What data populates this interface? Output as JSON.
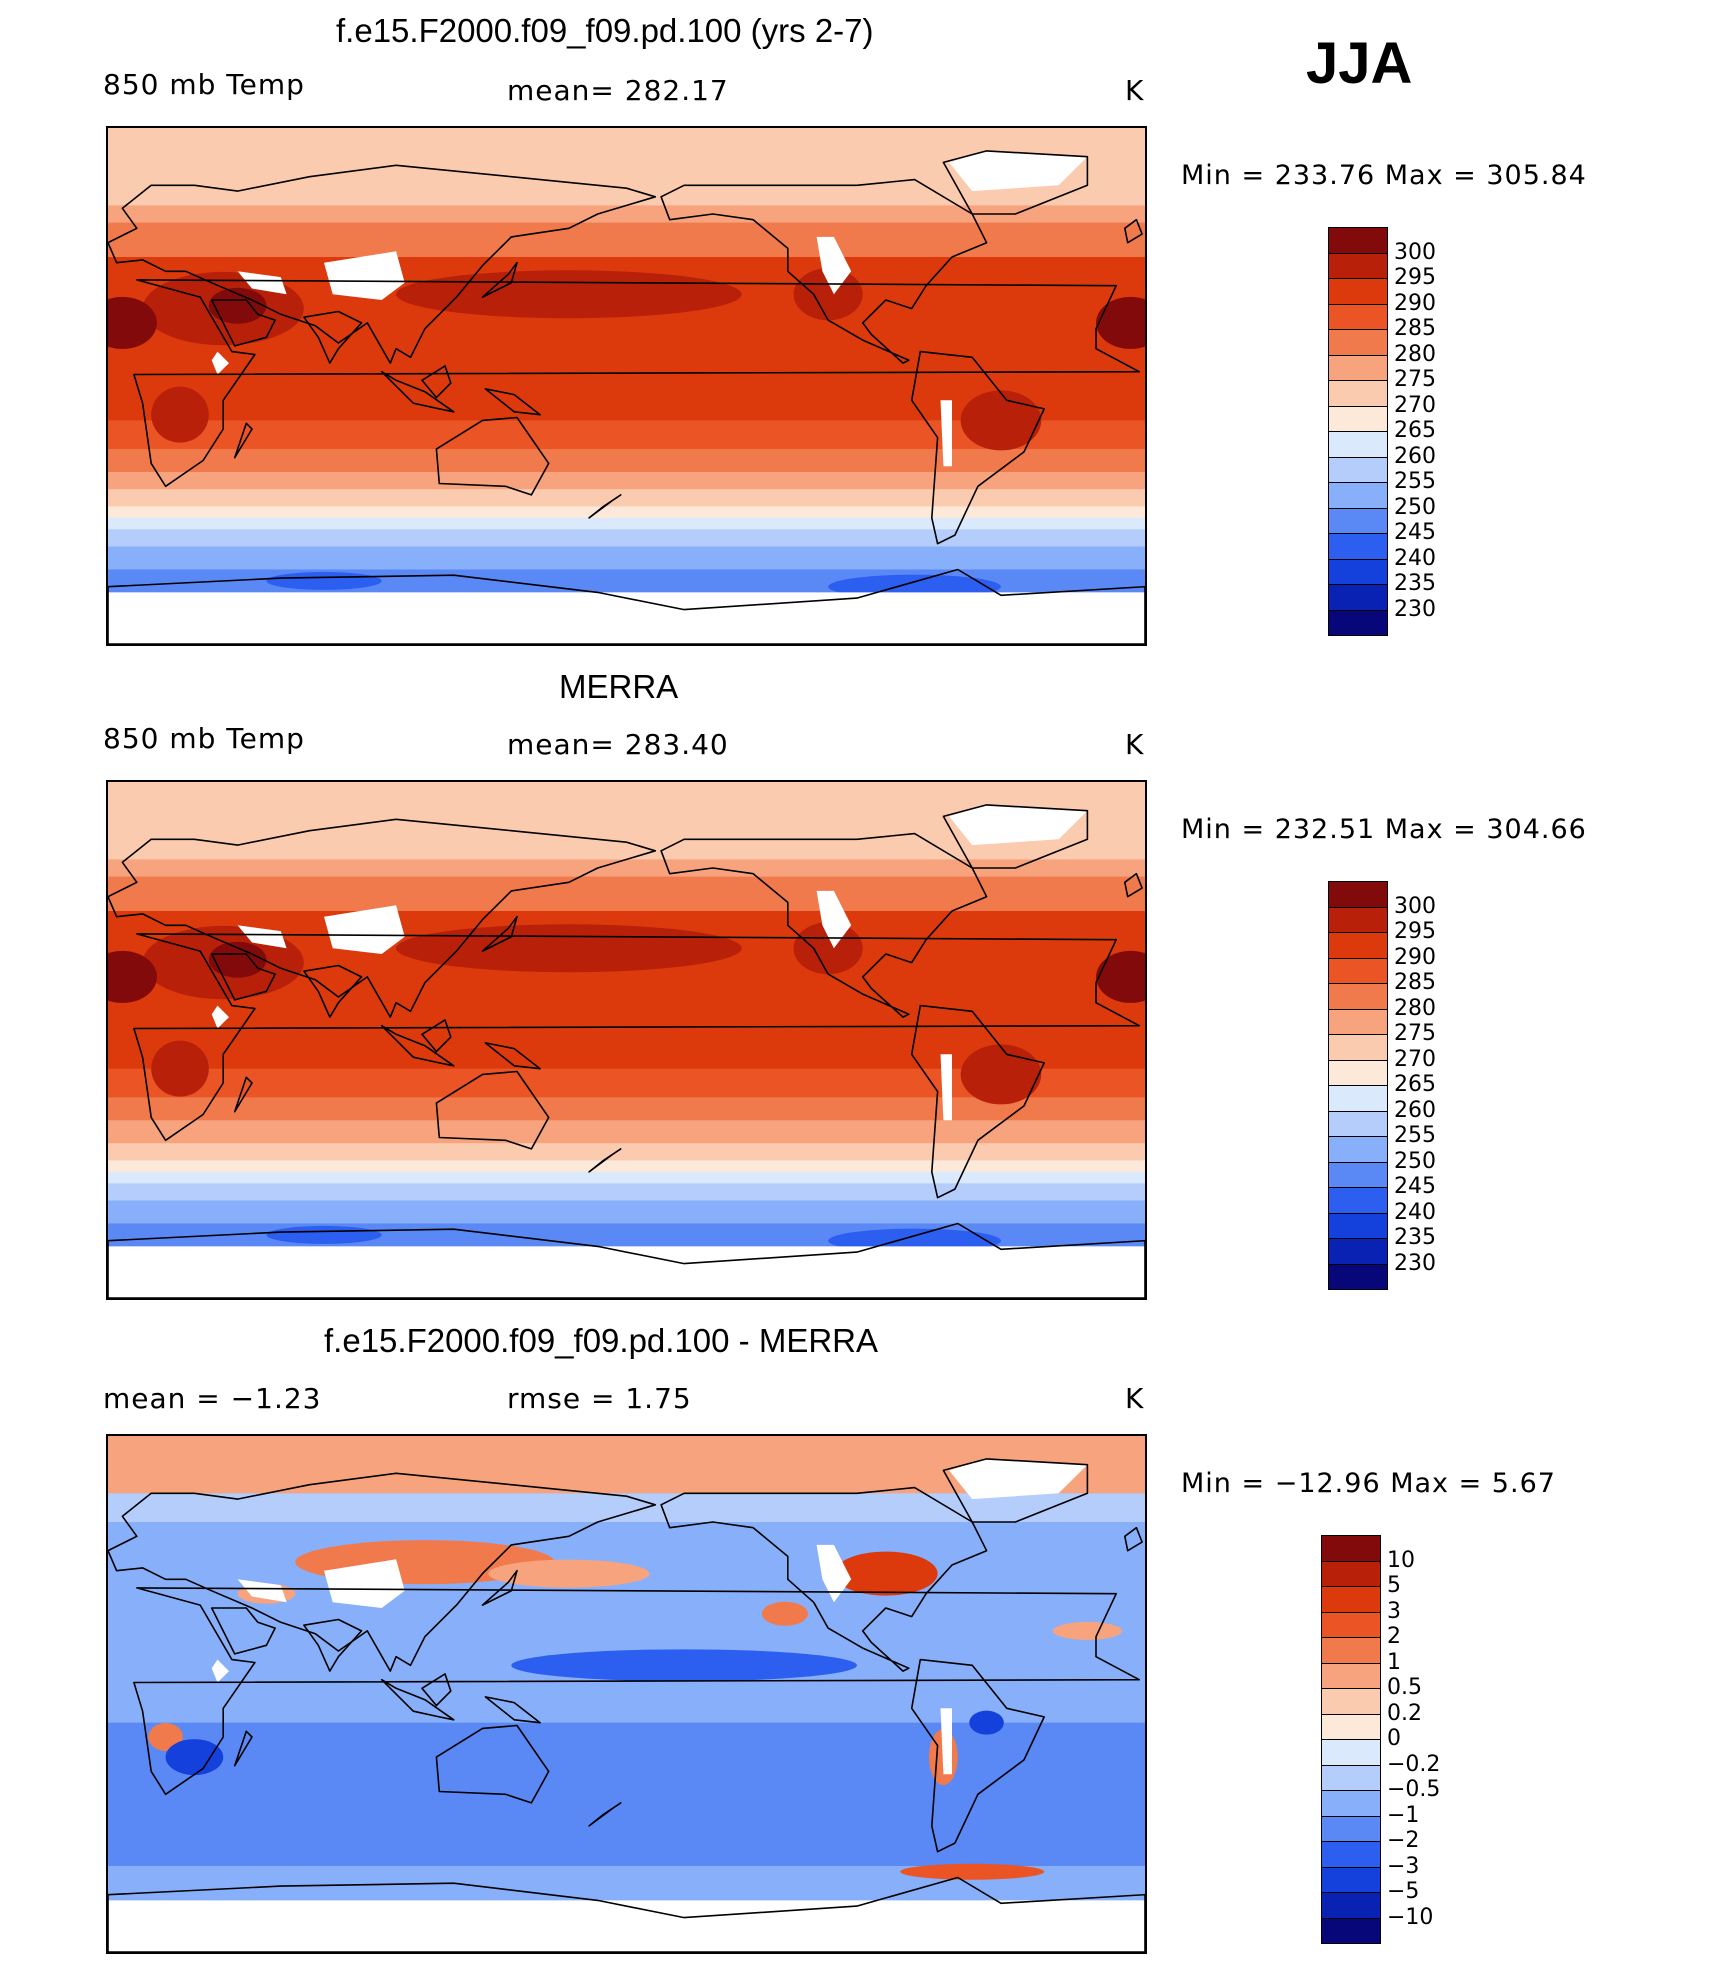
{
  "season": "JJA",
  "palette": {
    "temp": [
      "#07077a",
      "#0a22b4",
      "#1440dc",
      "#2c5ef0",
      "#5a88f5",
      "#88aff9",
      "#b4cdfb",
      "#dbe9fc",
      "#fde9da",
      "#fbcbb0",
      "#f7a47e",
      "#f17a4c",
      "#eb5525",
      "#dc3a0c",
      "#b8200a",
      "#830a0a"
    ],
    "diff": [
      "#07077a",
      "#0a22b4",
      "#1440dc",
      "#2c5ef0",
      "#5a88f5",
      "#88aff9",
      "#b4cdfb",
      "#dbe9fc",
      "#fde9da",
      "#fbcbb0",
      "#f7a47e",
      "#f17a4c",
      "#eb5525",
      "#dc3a0c",
      "#b8200a",
      "#830a0a"
    ]
  },
  "panels": [
    {
      "id": "model",
      "title": "f.e15.F2000.f09_f09.pd.100 (yrs 2-7)",
      "left_label": "850 mb Temp",
      "center_label": "mean= 282.17",
      "units": "K",
      "minmax": "Min = 233.76 Max = 305.84"
    },
    {
      "id": "obs",
      "title": "MERRA",
      "left_label": "850 mb Temp",
      "center_label": "mean= 283.40",
      "units": "K",
      "minmax": "Min = 232.51 Max = 304.66"
    },
    {
      "id": "diff",
      "title": "f.e15.F2000.f09_f09.pd.100 - MERRA",
      "left_label": "mean =   −1.23",
      "center_label": "rmse =    1.75",
      "units": "K",
      "minmax": "Min = −12.96 Max =     5.67"
    }
  ],
  "chart_data": [
    {
      "type": "heatmap",
      "title": "f.e15.F2000.f09_f09.pd.100 (yrs 2-7)",
      "variable": "850 mb Temp",
      "units": "K",
      "mean": 282.17,
      "min": 233.76,
      "max": 305.84,
      "colorbar_levels": [
        "300",
        "295",
        "290",
        "285",
        "280",
        "275",
        "270",
        "265",
        "260",
        "255",
        "250",
        "245",
        "240",
        "235",
        "230"
      ]
    },
    {
      "type": "heatmap",
      "title": "MERRA",
      "variable": "850 mb Temp",
      "units": "K",
      "mean": 283.4,
      "min": 232.51,
      "max": 304.66,
      "colorbar_levels": [
        "300",
        "295",
        "290",
        "285",
        "280",
        "275",
        "270",
        "265",
        "260",
        "255",
        "250",
        "245",
        "240",
        "235",
        "230"
      ]
    },
    {
      "type": "heatmap",
      "title": "f.e15.F2000.f09_f09.pd.100 - MERRA",
      "units": "K",
      "mean": -1.23,
      "rmse": 1.75,
      "min": -12.96,
      "max": 5.67,
      "colorbar_levels": [
        "10",
        "5",
        "3",
        "2",
        "1",
        "0.5",
        "0.2",
        "0",
        "−0.2",
        "−0.5",
        "−1",
        "−2",
        "−3",
        "−5",
        "−10"
      ]
    }
  ]
}
